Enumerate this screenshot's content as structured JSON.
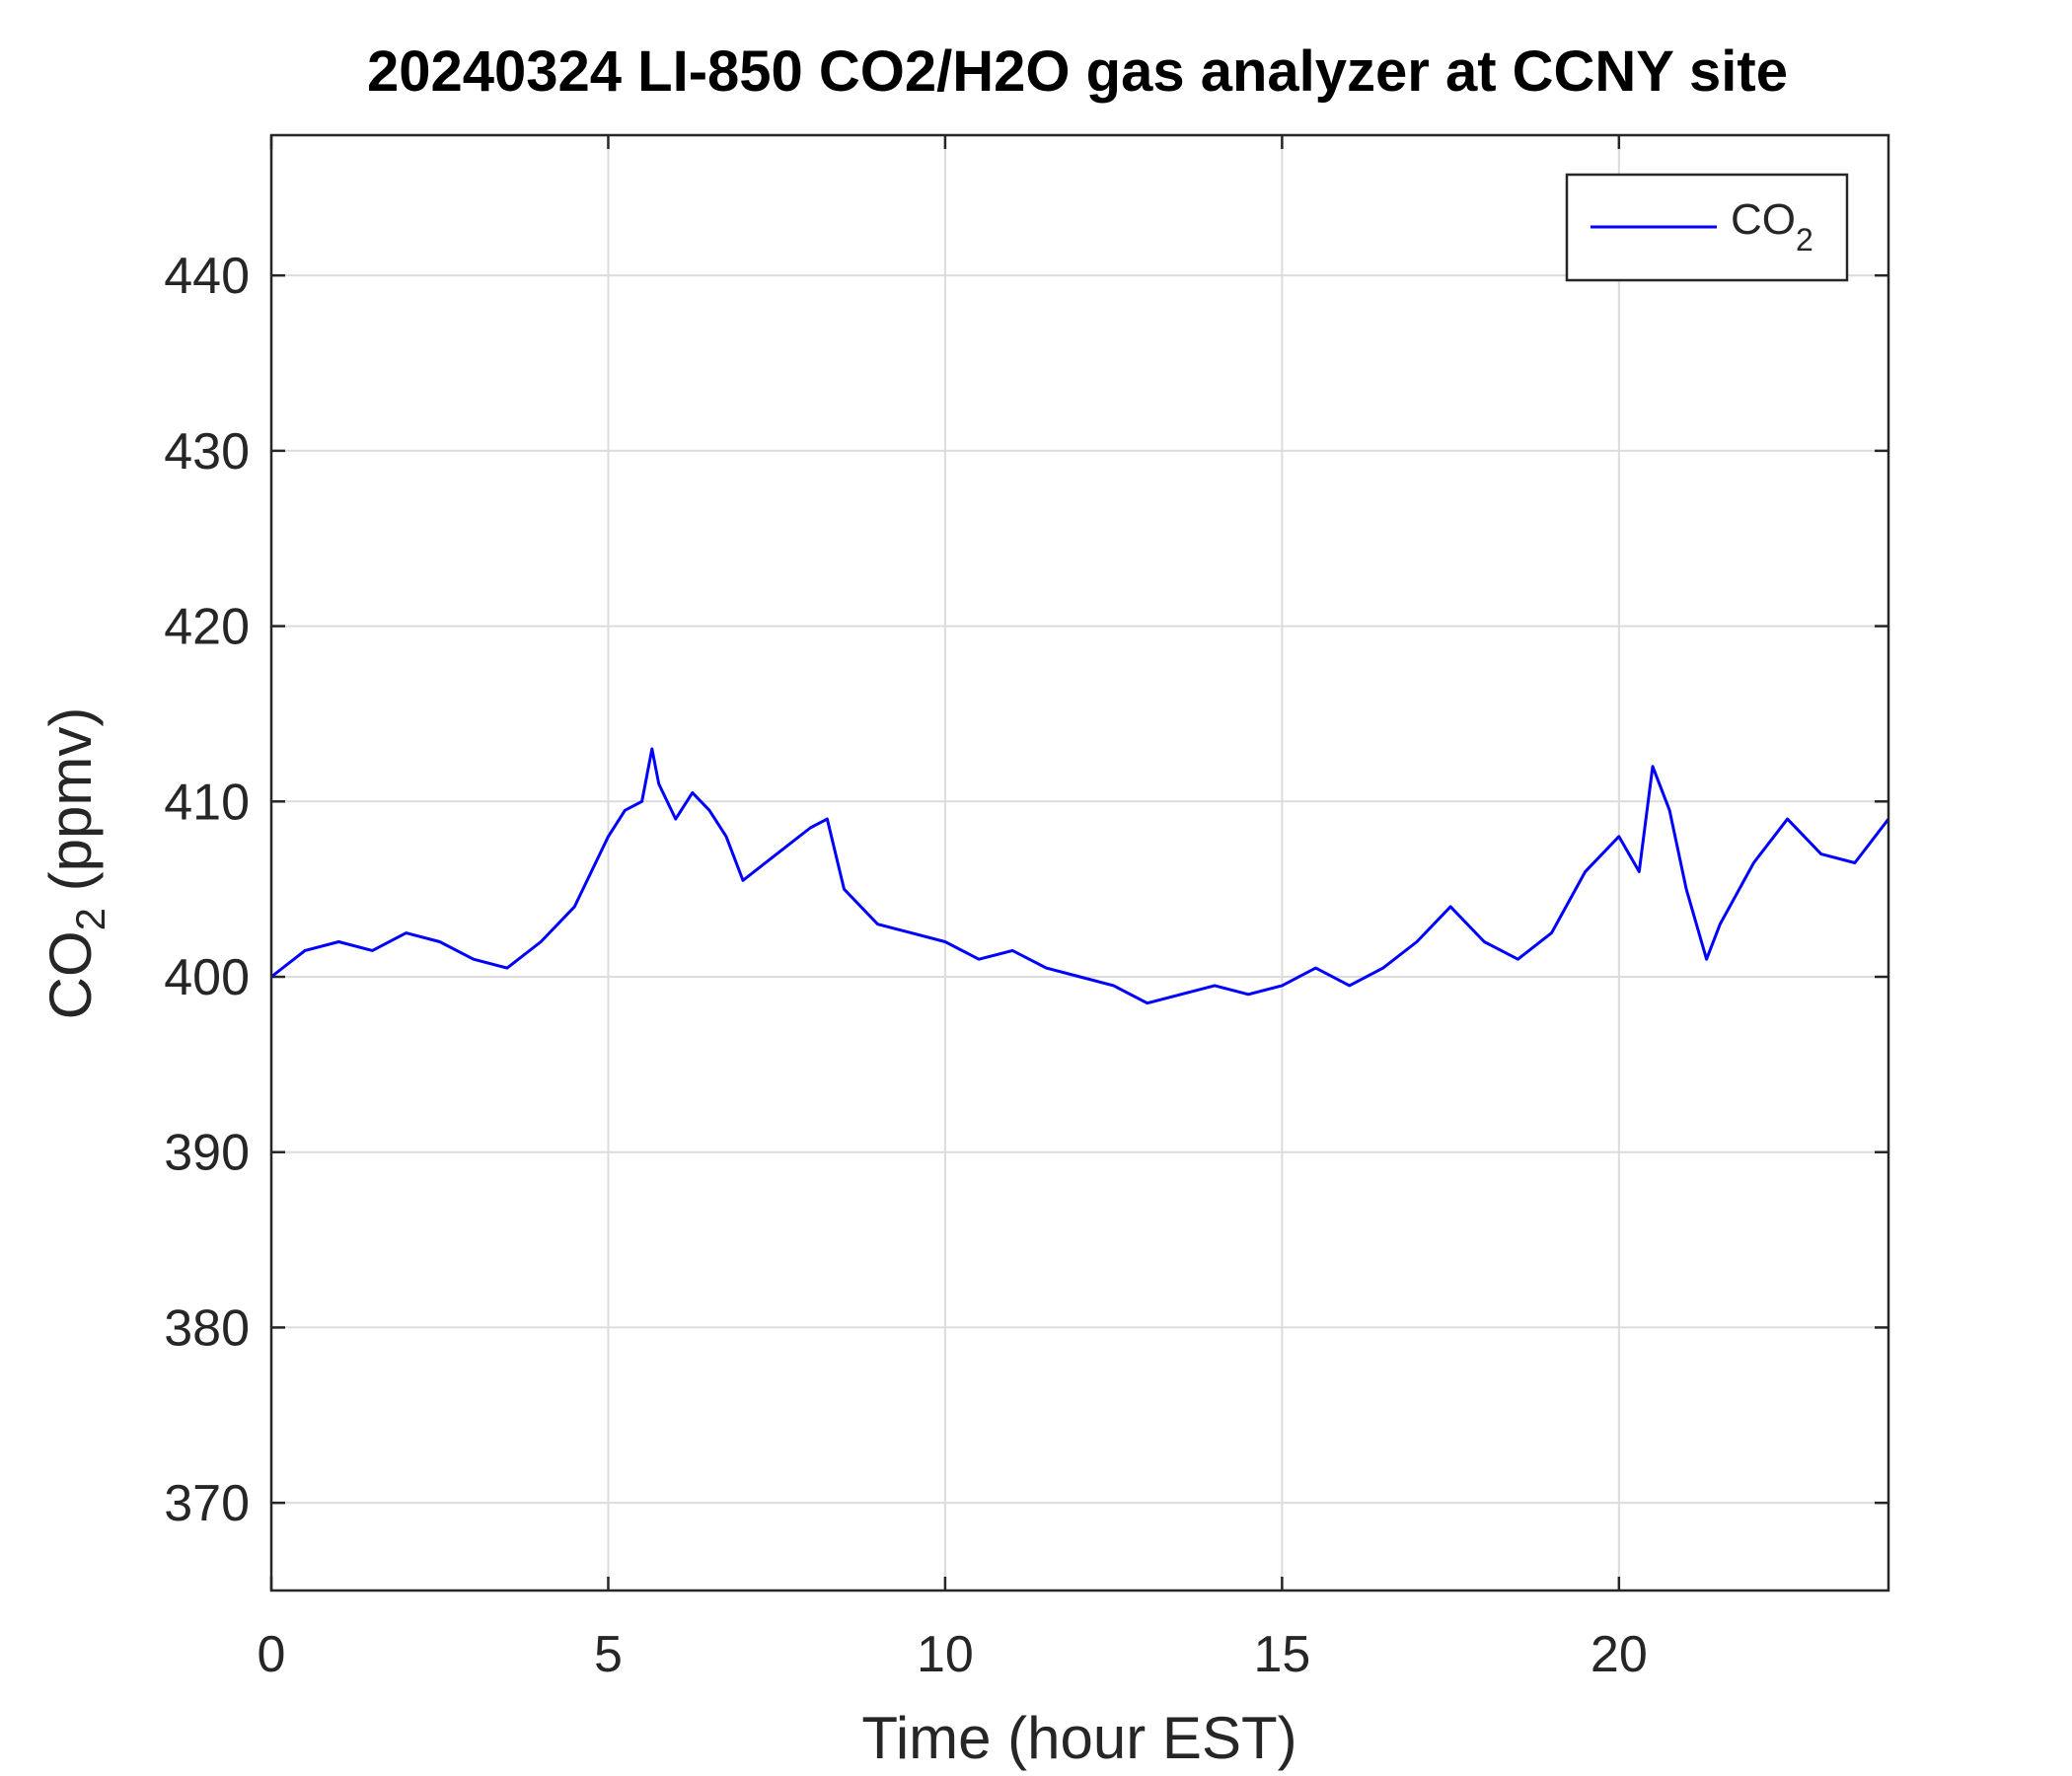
{
  "chart_data": {
    "type": "line",
    "title": "20240324 LI-850 CO2/H2O gas analyzer at CCNY site",
    "xlabel": "Time (hour EST)",
    "ylabel": {
      "base": "CO",
      "sub": "2",
      "rest": " (ppmv)"
    },
    "xlim": [
      0,
      24
    ],
    "ylim": [
      365,
      448
    ],
    "xticks": [
      0,
      5,
      10,
      15,
      20
    ],
    "yticks": [
      370,
      380,
      390,
      400,
      410,
      420,
      430,
      440
    ],
    "grid": true,
    "legend_position": "top-right",
    "series": [
      {
        "name": {
          "base": "CO",
          "sub": "2"
        },
        "color": "#0000ff",
        "x": [
          0,
          0.5,
          1,
          1.5,
          2,
          2.5,
          3,
          3.5,
          4,
          4.5,
          5,
          5.25,
          5.5,
          5.65,
          5.75,
          6,
          6.25,
          6.5,
          6.75,
          7,
          7.5,
          8,
          8.25,
          8.5,
          9,
          9.5,
          10,
          10.5,
          11,
          11.5,
          12,
          12.5,
          13,
          13.5,
          14,
          14.5,
          15,
          15.5,
          16,
          16.5,
          17,
          17.5,
          18,
          18.5,
          19,
          19.5,
          20,
          20.3,
          20.5,
          20.75,
          21,
          21.3,
          21.5,
          22,
          22.5,
          23,
          23.5,
          24
        ],
        "y": [
          400,
          401.5,
          402,
          401.5,
          402.5,
          402,
          401,
          400.5,
          402,
          404,
          408,
          409.5,
          410,
          413,
          411,
          409,
          410.5,
          409.5,
          408,
          405.5,
          407,
          408.5,
          409,
          405,
          403,
          402.5,
          402,
          401,
          401.5,
          400.5,
          400,
          399.5,
          398.5,
          399,
          399.5,
          399,
          399.5,
          400.5,
          399.5,
          400.5,
          402,
          404,
          402,
          401,
          402.5,
          406,
          408,
          406,
          412,
          409.5,
          405,
          401,
          403,
          406.5,
          409,
          407,
          406.5,
          409
        ]
      }
    ]
  }
}
